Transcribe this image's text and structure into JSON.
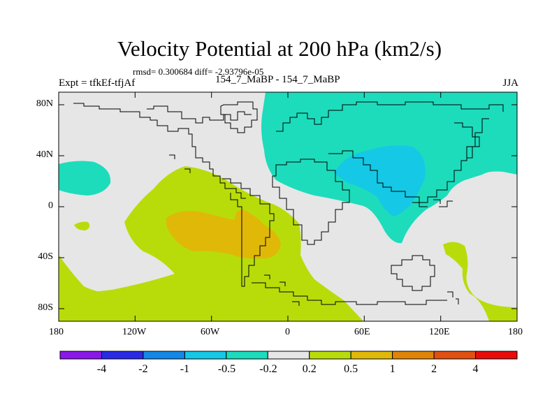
{
  "title": "Velocity Potential at 200 hPa (km2/s)",
  "stats": "rmsd= 0.300684  diff= -2.93796e-05",
  "expt": "Expt = tfkEf-tfjAf",
  "case": "154_7_MaBP - 154_7_MaBP",
  "season": "JJA",
  "map": {
    "lon_range": [
      -180,
      180
    ],
    "lat_range": [
      -90,
      90
    ],
    "x_ticks": [
      "180",
      "120W",
      "60W",
      "0",
      "60E",
      "120E",
      "180"
    ],
    "y_ticks": [
      "80N",
      "40N",
      "0",
      "40S",
      "80S"
    ]
  },
  "colorbar": {
    "colors": [
      "#8a18e8",
      "#2a2ae6",
      "#1488e6",
      "#14c8e6",
      "#1cdcbc",
      "#e6e6e6",
      "#b8dc0a",
      "#e0b808",
      "#e08408",
      "#e05010",
      "#e80c0c"
    ],
    "labels": [
      "-4",
      "-2",
      "-1",
      "-0.5",
      "-0.2",
      "0.2",
      "0.5",
      "1",
      "2",
      "4"
    ]
  }
}
